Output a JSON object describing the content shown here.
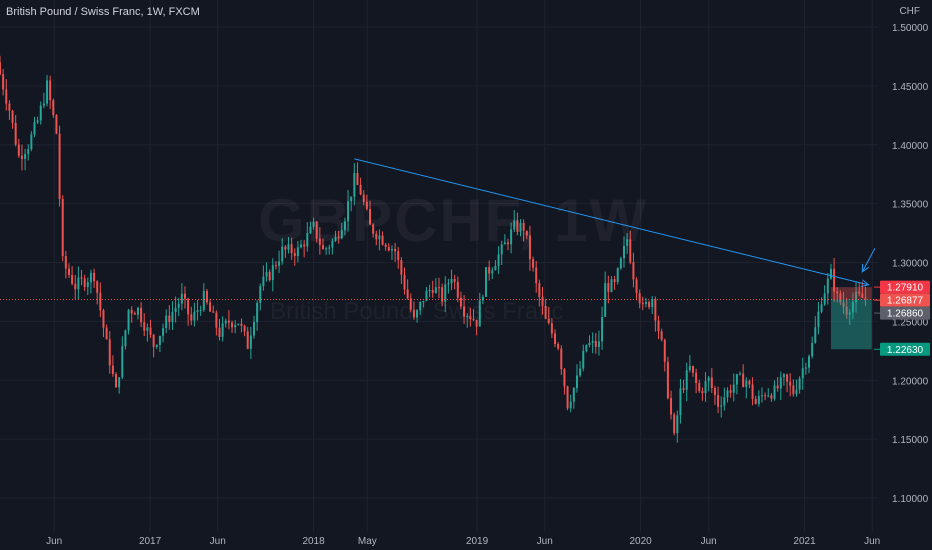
{
  "header": {
    "title": "British Pound / Swiss Franc, 1W, FXCM",
    "currency": "CHF"
  },
  "watermark": {
    "symbol": "GBPCHF, 1W",
    "name": "British Pound / Swiss Franc"
  },
  "colors": {
    "background": "#131722",
    "grid": "#1f2330",
    "bull": "#26a69a",
    "bear": "#ef5350",
    "trendline": "#2196f3",
    "stop_zone": "rgba(239,83,80,0.35)",
    "target_zone": "rgba(38,166,154,0.45)",
    "stop_label": "#f23645",
    "target_label": "#089981",
    "current_label": "#5d606b"
  },
  "chart_data": {
    "type": "candlestick",
    "title": "British Pound / Swiss Franc, 1W, FXCM",
    "y_unit": "CHF",
    "ylim": [
      1.08,
      1.515
    ],
    "y_ticks": [
      1.1,
      1.15,
      1.2,
      1.25,
      1.3,
      1.35,
      1.4,
      1.45,
      1.5
    ],
    "y_tick_labels": [
      "1.10000",
      "1.15000",
      "1.20000",
      "1.25000",
      "1.30000",
      "1.35000",
      "1.40000",
      "1.45000",
      "1.50000"
    ],
    "x_range": [
      "2016-02-01",
      "2021-06-14"
    ],
    "x_ticks": [
      {
        "date": "2016-06-01",
        "label": "Jun"
      },
      {
        "date": "2017-01-01",
        "label": "2017"
      },
      {
        "date": "2017-06-01",
        "label": "Jun"
      },
      {
        "date": "2018-01-01",
        "label": "2018"
      },
      {
        "date": "2018-05-01",
        "label": "May"
      },
      {
        "date": "2019-01-01",
        "label": "2019"
      },
      {
        "date": "2019-06-01",
        "label": "Jun"
      },
      {
        "date": "2020-01-01",
        "label": "2020"
      },
      {
        "date": "2020-06-01",
        "label": "Jun"
      },
      {
        "date": "2021-01-01",
        "label": "2021"
      },
      {
        "date": "2021-06-01",
        "label": "Jun"
      }
    ],
    "grid": true,
    "price_path": [
      [
        "2016-02-01",
        1.47
      ],
      [
        "2016-02-29",
        1.43
      ],
      [
        "2016-03-21",
        1.39
      ],
      [
        "2016-04-11",
        1.4
      ],
      [
        "2016-05-02",
        1.42
      ],
      [
        "2016-05-23",
        1.45
      ],
      [
        "2016-06-13",
        1.41
      ],
      [
        "2016-06-27",
        1.3
      ],
      [
        "2016-07-25",
        1.28
      ],
      [
        "2016-09-05",
        1.29
      ],
      [
        "2016-10-03",
        1.23
      ],
      [
        "2016-10-24",
        1.19
      ],
      [
        "2016-11-21",
        1.26
      ],
      [
        "2016-12-12",
        1.26
      ],
      [
        "2017-01-16",
        1.23
      ],
      [
        "2017-02-13",
        1.25
      ],
      [
        "2017-03-20",
        1.27
      ],
      [
        "2017-04-10",
        1.25
      ],
      [
        "2017-05-08",
        1.27
      ],
      [
        "2017-06-12",
        1.24
      ],
      [
        "2017-07-03",
        1.25
      ],
      [
        "2017-07-24",
        1.25
      ],
      [
        "2017-08-14",
        1.23
      ],
      [
        "2017-09-11",
        1.28
      ],
      [
        "2017-10-02",
        1.29
      ],
      [
        "2017-10-30",
        1.31
      ],
      [
        "2017-12-04",
        1.31
      ],
      [
        "2018-01-08",
        1.33
      ],
      [
        "2018-01-29",
        1.31
      ],
      [
        "2018-02-26",
        1.32
      ],
      [
        "2018-03-19",
        1.34
      ],
      [
        "2018-04-09",
        1.37
      ],
      [
        "2018-04-23",
        1.36
      ],
      [
        "2018-05-14",
        1.33
      ],
      [
        "2018-06-11",
        1.32
      ],
      [
        "2018-07-09",
        1.31
      ],
      [
        "2018-07-30",
        1.28
      ],
      [
        "2018-08-20",
        1.25
      ],
      [
        "2018-09-10",
        1.27
      ],
      [
        "2018-10-01",
        1.28
      ],
      [
        "2018-10-22",
        1.27
      ],
      [
        "2018-11-12",
        1.29
      ],
      [
        "2018-12-10",
        1.26
      ],
      [
        "2019-01-07",
        1.25
      ],
      [
        "2019-01-28",
        1.29
      ],
      [
        "2019-03-04",
        1.31
      ],
      [
        "2019-04-01",
        1.33
      ],
      [
        "2019-04-22",
        1.33
      ],
      [
        "2019-05-20",
        1.28
      ],
      [
        "2019-06-10",
        1.25
      ],
      [
        "2019-07-08",
        1.23
      ],
      [
        "2019-07-29",
        1.18
      ],
      [
        "2019-08-19",
        1.2
      ],
      [
        "2019-09-09",
        1.23
      ],
      [
        "2019-10-07",
        1.23
      ],
      [
        "2019-10-21",
        1.28
      ],
      [
        "2019-11-11",
        1.28
      ],
      [
        "2019-12-09",
        1.32
      ],
      [
        "2019-12-23",
        1.29
      ],
      [
        "2020-01-13",
        1.26
      ],
      [
        "2020-02-03",
        1.27
      ],
      [
        "2020-02-24",
        1.23
      ],
      [
        "2020-03-09",
        1.19
      ],
      [
        "2020-03-23",
        1.15
      ],
      [
        "2020-04-06",
        1.19
      ],
      [
        "2020-04-27",
        1.21
      ],
      [
        "2020-05-18",
        1.19
      ],
      [
        "2020-06-08",
        1.2
      ],
      [
        "2020-06-29",
        1.18
      ],
      [
        "2020-07-20",
        1.19
      ],
      [
        "2020-08-10",
        1.2
      ],
      [
        "2020-08-31",
        1.2
      ],
      [
        "2020-09-21",
        1.18
      ],
      [
        "2020-10-12",
        1.19
      ],
      [
        "2020-11-02",
        1.19
      ],
      [
        "2020-11-23",
        1.2
      ],
      [
        "2020-12-14",
        1.19
      ],
      [
        "2021-01-04",
        1.21
      ],
      [
        "2021-01-25",
        1.23
      ],
      [
        "2021-02-15",
        1.27
      ],
      [
        "2021-03-08",
        1.29
      ],
      [
        "2021-03-22",
        1.27
      ],
      [
        "2021-04-12",
        1.26
      ],
      [
        "2021-05-03",
        1.27
      ]
    ],
    "trendline": {
      "from": [
        "2018-04-02",
        1.388
      ],
      "to": [
        "2021-05-24",
        1.281
      ],
      "arrow": true
    },
    "current_price": 1.2686,
    "price_labels": [
      {
        "role": "stop",
        "value": 1.2791,
        "label": "1.27910"
      },
      {
        "role": "entry",
        "value": 1.26877,
        "label": "1.26877"
      },
      {
        "role": "current",
        "value": 1.2686,
        "label": "1.26860"
      },
      {
        "role": "target",
        "value": 1.2263,
        "label": "1.22630"
      }
    ],
    "position": {
      "type": "short",
      "start": "2021-03-01",
      "end": "2021-05-31",
      "entry": 1.26877,
      "stop": 1.2791,
      "target": 1.2263
    },
    "annotation_arrow": {
      "from": [
        "2021-06-07",
        1.312
      ],
      "to": [
        "2021-05-10",
        1.292
      ]
    }
  }
}
